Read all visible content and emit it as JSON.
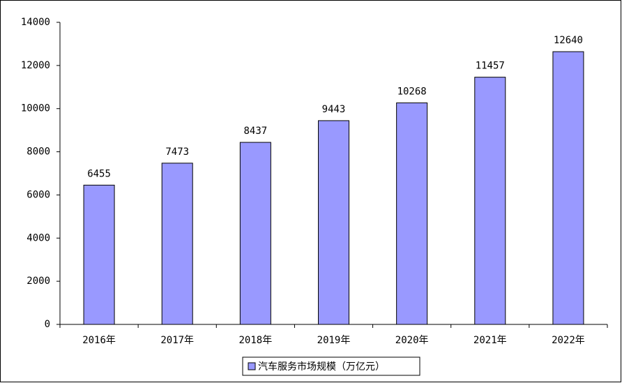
{
  "chart_data": {
    "type": "bar",
    "categories": [
      "2016年",
      "2017年",
      "2018年",
      "2019年",
      "2020年",
      "2021年",
      "2022年"
    ],
    "series": [
      {
        "name": "汽车服务市场规模（万亿元）",
        "color": "#9999ff",
        "values": [
          6455,
          7473,
          8437,
          9443,
          10268,
          11457,
          12640
        ]
      }
    ],
    "ylim": [
      0,
      14000
    ],
    "yticks": [
      0,
      2000,
      4000,
      6000,
      8000,
      10000,
      12000,
      14000
    ],
    "grid": false,
    "legend": "bottom"
  }
}
